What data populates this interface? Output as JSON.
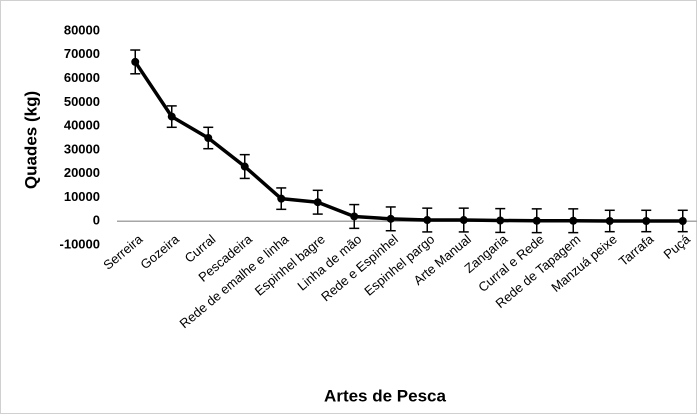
{
  "chart_data": {
    "type": "line",
    "x_label": "Artes de Pesca",
    "y_label": "Quades (kg)",
    "categories": [
      "Serreira",
      "Gozeira",
      "Curral",
      "Pescadeira",
      "Rede de emalhe e linha",
      "Espinhel bagre",
      "Linha de mão",
      "Rede e Espinhel",
      "Espinhel pargo",
      "Arte Manual",
      "Zangaria",
      "Curral e Rede",
      "Rede de Tapagem",
      "Manzuá peixe",
      "Tarrafa",
      "Puçá"
    ],
    "values": [
      67000,
      44000,
      35000,
      23000,
      9500,
      8000,
      2000,
      1000,
      500,
      500,
      300,
      200,
      200,
      100,
      100,
      100
    ],
    "errors": [
      5000,
      4500,
      4500,
      5000,
      4500,
      5000,
      5000,
      5000,
      5000,
      5000,
      5000,
      5000,
      5000,
      4500,
      4500,
      4500
    ],
    "color": "#000000",
    "ylim": [
      -10000,
      80000
    ],
    "yticks": [
      -10000,
      0,
      10000,
      20000,
      30000,
      40000,
      50000,
      60000,
      70000,
      80000
    ]
  }
}
